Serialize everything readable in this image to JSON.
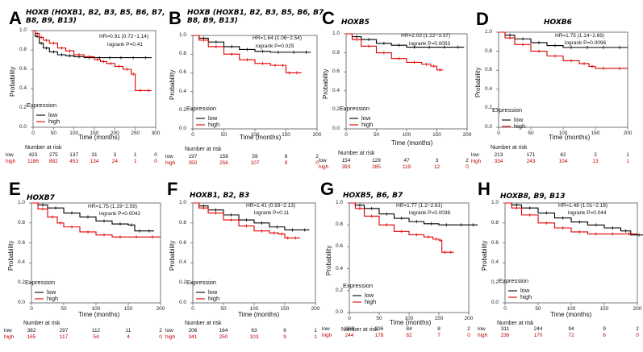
{
  "common": {
    "ylabel": "Probability",
    "xlabel": "Time (months)",
    "legend_title": "Expression",
    "low_label": "low",
    "high_label": "high",
    "number_at_risk": "Number at risk",
    "row_low": "low",
    "row_high": "high",
    "colors": {
      "low": "#000000",
      "high": "#e00000"
    }
  },
  "chart_data": [
    {
      "letter": "A",
      "gene": "HOXB (HOXB1, B2, B3, B5, B6, B7,\nB8, B9, B13)",
      "hr": "HR=0.91 (0.72−1.14)",
      "logrank": "logrank P=0.41",
      "type": "line",
      "xlim": [
        0,
        300
      ],
      "xticks": [
        0,
        50,
        100,
        150,
        200,
        250,
        300
      ],
      "ylim": [
        0,
        1
      ],
      "yticks": [
        "0.0",
        "0.2",
        "0.4",
        "0.6",
        "0.8",
        "1.0"
      ],
      "series": [
        {
          "name": "low",
          "x": [
            0,
            5,
            15,
            25,
            40,
            60,
            80,
            100,
            125,
            150,
            175,
            200,
            230,
            260,
            290
          ],
          "y": [
            1,
            0.94,
            0.87,
            0.82,
            0.78,
            0.75,
            0.74,
            0.73,
            0.72,
            0.72,
            0.72,
            0.72,
            0.72,
            0.72,
            0.72
          ]
        },
        {
          "name": "high",
          "x": [
            0,
            5,
            15,
            25,
            40,
            60,
            80,
            100,
            125,
            150,
            165,
            180,
            200,
            220,
            240,
            250,
            275,
            290
          ],
          "y": [
            1,
            0.97,
            0.93,
            0.9,
            0.87,
            0.82,
            0.79,
            0.75,
            0.73,
            0.7,
            0.68,
            0.66,
            0.63,
            0.6,
            0.55,
            0.38,
            0.38,
            0.38
          ]
        }
      ],
      "risk_times": [
        0,
        50,
        100,
        150,
        200,
        250,
        300
      ],
      "risk_low": [
        "423",
        "275",
        "137",
        "31",
        "3",
        "1",
        "0"
      ],
      "risk_high": [
        "1186",
        "882",
        "453",
        "134",
        "24",
        "1",
        "0"
      ]
    },
    {
      "letter": "B",
      "gene": "HOXB (HOXB1, B2, B3, B5, B6, B7,\nB8, B9, B13)",
      "hr": "HR=1.64 (1.06−2.54)",
      "logrank": "logrank P=0.025",
      "type": "line",
      "xlim": [
        0,
        200
      ],
      "xticks": [
        0,
        50,
        100,
        150,
        200
      ],
      "ylim": [
        0,
        1
      ],
      "yticks": [
        "0.0",
        "0.2",
        "0.4",
        "0.6",
        "0.8",
        "1.0"
      ],
      "series": [
        {
          "name": "low",
          "x": [
            0,
            10,
            25,
            50,
            75,
            100,
            125,
            150,
            175,
            190
          ],
          "y": [
            1,
            0.97,
            0.93,
            0.88,
            0.85,
            0.83,
            0.82,
            0.82,
            0.82,
            0.82
          ]
        },
        {
          "name": "high",
          "x": [
            0,
            10,
            25,
            50,
            75,
            100,
            125,
            140,
            150,
            160,
            175
          ],
          "y": [
            1,
            0.95,
            0.88,
            0.8,
            0.74,
            0.7,
            0.68,
            0.68,
            0.6,
            0.6,
            0.6
          ]
        }
      ],
      "risk_times": [
        0,
        50,
        100,
        150,
        200
      ],
      "risk_low": [
        "197",
        "158",
        "59",
        "6",
        "2"
      ],
      "risk_high": [
        "350",
        "256",
        "107",
        "9",
        "0"
      ]
    },
    {
      "letter": "C",
      "gene": "HOXB5",
      "hr": "HR=2.03 (1.22−3.37)",
      "logrank": "logrank P=0.0053",
      "type": "line",
      "xlim": [
        0,
        200
      ],
      "xticks": [
        0,
        50,
        100,
        150,
        200
      ],
      "ylim": [
        0,
        1
      ],
      "yticks": [
        "0.0",
        "0.2",
        "0.4",
        "0.6",
        "0.8",
        "1.0"
      ],
      "series": [
        {
          "name": "low",
          "x": [
            0,
            10,
            25,
            50,
            75,
            100,
            125,
            150,
            175,
            195
          ],
          "y": [
            1,
            0.97,
            0.94,
            0.9,
            0.88,
            0.86,
            0.86,
            0.86,
            0.86,
            0.86
          ]
        },
        {
          "name": "high",
          "x": [
            0,
            10,
            25,
            50,
            75,
            100,
            125,
            140,
            150,
            160
          ],
          "y": [
            1,
            0.94,
            0.87,
            0.8,
            0.74,
            0.7,
            0.68,
            0.66,
            0.62,
            0.62
          ]
        }
      ],
      "risk_times": [
        0,
        50,
        100,
        150,
        200
      ],
      "risk_low": [
        "154",
        "129",
        "47",
        "3",
        "2"
      ],
      "risk_high": [
        "393",
        "285",
        "119",
        "12",
        "0"
      ]
    },
    {
      "letter": "D",
      "gene": "HOXB6",
      "hr": "HR=1.75 (1.14−2.69)",
      "logrank": "logrank P=0.0096",
      "type": "line",
      "xlim": [
        0,
        200
      ],
      "xticks": [
        0,
        50,
        100,
        150,
        200
      ],
      "ylim": [
        0,
        1
      ],
      "yticks": [
        "0.0",
        "0.2",
        "0.4",
        "0.6",
        "0.8",
        "1.0"
      ],
      "series": [
        {
          "name": "low",
          "x": [
            0,
            10,
            25,
            50,
            75,
            100,
            125,
            150,
            175,
            200
          ],
          "y": [
            1,
            0.97,
            0.93,
            0.89,
            0.86,
            0.84,
            0.84,
            0.84,
            0.84,
            0.84
          ]
        },
        {
          "name": "high",
          "x": [
            0,
            10,
            25,
            50,
            75,
            100,
            125,
            140,
            150,
            175,
            200
          ],
          "y": [
            1,
            0.94,
            0.87,
            0.8,
            0.75,
            0.7,
            0.67,
            0.64,
            0.62,
            0.62,
            0.62
          ]
        }
      ],
      "risk_times": [
        0,
        50,
        100,
        150,
        200
      ],
      "risk_low": [
        "213",
        "171",
        "62",
        "2",
        "1"
      ],
      "risk_high": [
        "334",
        "243",
        "104",
        "13",
        "1"
      ]
    },
    {
      "letter": "E",
      "gene": "HOXB7",
      "hr": "HR=1.75 (1.19−2.59)",
      "logrank": "logrank P=0.0042",
      "type": "line",
      "xlim": [
        0,
        200
      ],
      "xticks": [
        0,
        50,
        100,
        150,
        200
      ],
      "ylim": [
        0,
        1
      ],
      "yticks": [
        "0.0",
        "0.2",
        "0.4",
        "0.6",
        "0.8",
        "1.0"
      ],
      "series": [
        {
          "name": "low",
          "x": [
            0,
            10,
            25,
            50,
            75,
            100,
            125,
            150,
            160,
            175,
            190
          ],
          "y": [
            1,
            0.98,
            0.95,
            0.9,
            0.86,
            0.82,
            0.79,
            0.78,
            0.72,
            0.72,
            0.72
          ]
        },
        {
          "name": "high",
          "x": [
            0,
            10,
            25,
            40,
            50,
            75,
            100,
            125,
            150,
            175,
            200
          ],
          "y": [
            1,
            0.94,
            0.86,
            0.8,
            0.76,
            0.71,
            0.68,
            0.66,
            0.66,
            0.66,
            0.66
          ]
        }
      ],
      "risk_times": [
        0,
        50,
        100,
        150,
        200
      ],
      "risk_low": [
        "382",
        "297",
        "112",
        "11",
        "2"
      ],
      "risk_high": [
        "165",
        "117",
        "54",
        "4",
        "0"
      ]
    },
    {
      "letter": "F",
      "gene": "HOXB1, B2, B3",
      "hr": "HR=1.41 (0.93−2.13)",
      "logrank": "logrank P=0.11",
      "type": "line",
      "xlim": [
        0,
        200
      ],
      "xticks": [
        0,
        50,
        100,
        150,
        200
      ],
      "ylim": [
        0,
        1
      ],
      "yticks": [
        "0.0",
        "0.2",
        "0.4",
        "0.6",
        "0.8",
        "1.0"
      ],
      "series": [
        {
          "name": "low",
          "x": [
            0,
            10,
            25,
            50,
            75,
            100,
            125,
            150,
            175,
            190
          ],
          "y": [
            1,
            0.97,
            0.93,
            0.88,
            0.83,
            0.8,
            0.76,
            0.73,
            0.73,
            0.73
          ]
        },
        {
          "name": "high",
          "x": [
            0,
            10,
            25,
            50,
            75,
            100,
            125,
            140,
            150,
            160,
            175
          ],
          "y": [
            1,
            0.95,
            0.9,
            0.83,
            0.77,
            0.72,
            0.7,
            0.69,
            0.65,
            0.65,
            0.65
          ]
        }
      ],
      "risk_times": [
        0,
        50,
        100,
        150,
        200
      ],
      "risk_low": [
        "206",
        "164",
        "63",
        "6",
        "1"
      ],
      "risk_high": [
        "341",
        "250",
        "103",
        "9",
        "1"
      ]
    },
    {
      "letter": "G",
      "gene": "HOXB5, B6, B7",
      "hr": "HR=1.77 (1.2−2.61)",
      "logrank": "logrank P=0.0038",
      "type": "line",
      "xlim": [
        0,
        200
      ],
      "xticks": [
        0,
        50,
        100,
        150,
        200
      ],
      "ylim": [
        0,
        1
      ],
      "yticks": [
        "0.0",
        "0.2",
        "0.4",
        "0.6",
        "0.8",
        "1.0"
      ],
      "series": [
        {
          "name": "low",
          "x": [
            0,
            10,
            25,
            50,
            75,
            100,
            125,
            150,
            175,
            200,
            215
          ],
          "y": [
            1,
            0.98,
            0.95,
            0.9,
            0.86,
            0.83,
            0.81,
            0.8,
            0.8,
            0.8,
            0.8
          ]
        },
        {
          "name": "high",
          "x": [
            0,
            10,
            25,
            50,
            75,
            100,
            125,
            140,
            150,
            155,
            165,
            175
          ],
          "y": [
            1,
            0.95,
            0.88,
            0.8,
            0.74,
            0.71,
            0.69,
            0.67,
            0.66,
            0.55,
            0.55,
            0.55
          ]
        }
      ],
      "risk_times": [
        0,
        50,
        100,
        150,
        200
      ],
      "risk_low": [
        "303",
        "236",
        "84",
        "8",
        "2"
      ],
      "risk_high": [
        "244",
        "178",
        "82",
        "7",
        "0"
      ]
    },
    {
      "letter": "H",
      "gene": "HOXB8, B9, B13",
      "hr": "HR=1.48 (1.01−2.18)",
      "logrank": "logrank P=0.044",
      "type": "line",
      "xlim": [
        0,
        200
      ],
      "xticks": [
        0,
        50,
        100,
        150,
        200
      ],
      "ylim": [
        0,
        1
      ],
      "yticks": [
        "0.0",
        "0.2",
        "0.4",
        "0.6",
        "0.8",
        "1.0"
      ],
      "series": [
        {
          "name": "low",
          "x": [
            0,
            10,
            25,
            50,
            75,
            100,
            125,
            150,
            175,
            190,
            215
          ],
          "y": [
            1,
            0.98,
            0.95,
            0.9,
            0.85,
            0.81,
            0.78,
            0.75,
            0.72,
            0.68,
            0.68
          ]
        },
        {
          "name": "high",
          "x": [
            0,
            10,
            25,
            50,
            75,
            100,
            125,
            150,
            175,
            200
          ],
          "y": [
            1,
            0.95,
            0.88,
            0.8,
            0.75,
            0.71,
            0.69,
            0.69,
            0.69,
            0.69
          ]
        }
      ],
      "risk_times": [
        0,
        50,
        100,
        150,
        200
      ],
      "risk_low": [
        "311",
        "244",
        "94",
        "9",
        "2"
      ],
      "risk_high": [
        "236",
        "170",
        "72",
        "6",
        "0"
      ]
    }
  ]
}
